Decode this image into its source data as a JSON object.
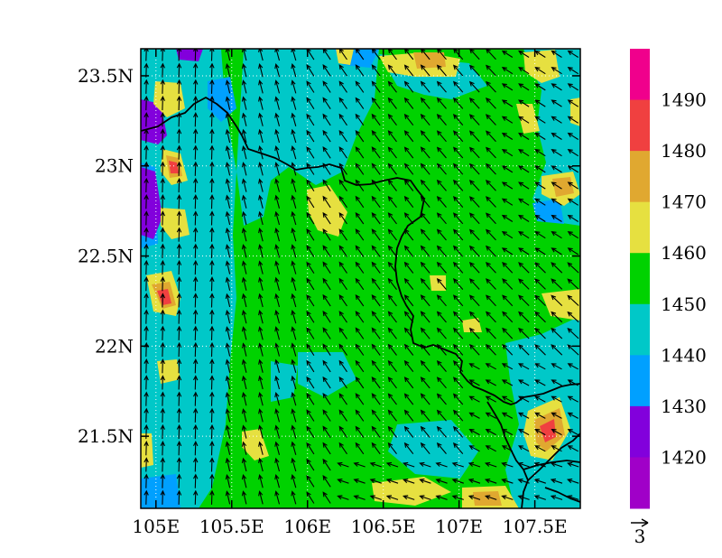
{
  "map": {
    "lon_labels": [
      "105E",
      "105.5E",
      "106E",
      "106.5E",
      "107E",
      "107.5E"
    ],
    "lat_labels": [
      "23.5N",
      "23N",
      "22.5N",
      "22N",
      "21.5N"
    ],
    "lon_range": [
      104.9,
      107.8
    ],
    "lat_range": [
      21.1,
      23.65
    ],
    "lon_ticks": [
      105,
      105.5,
      106,
      106.5,
      107,
      107.5
    ],
    "lat_ticks": [
      23.5,
      23,
      22.5,
      22,
      21.5
    ],
    "grid": true
  },
  "colorbar": {
    "labels": [
      "1490",
      "1480",
      "1470",
      "1460",
      "1450",
      "1440",
      "1430",
      "1420"
    ],
    "colors": [
      "#f0008c",
      "#f04040",
      "#e0a830",
      "#e6e040",
      "#00d200",
      "#00c8c8",
      "#00a0ff",
      "#8200dc",
      "#a000c8"
    ]
  },
  "vector_reference": {
    "label": "3"
  },
  "colors": {
    "base_field": "#00d200",
    "wind_arrow": "#000000",
    "border": "#000000",
    "grid": "#ffffff"
  }
}
